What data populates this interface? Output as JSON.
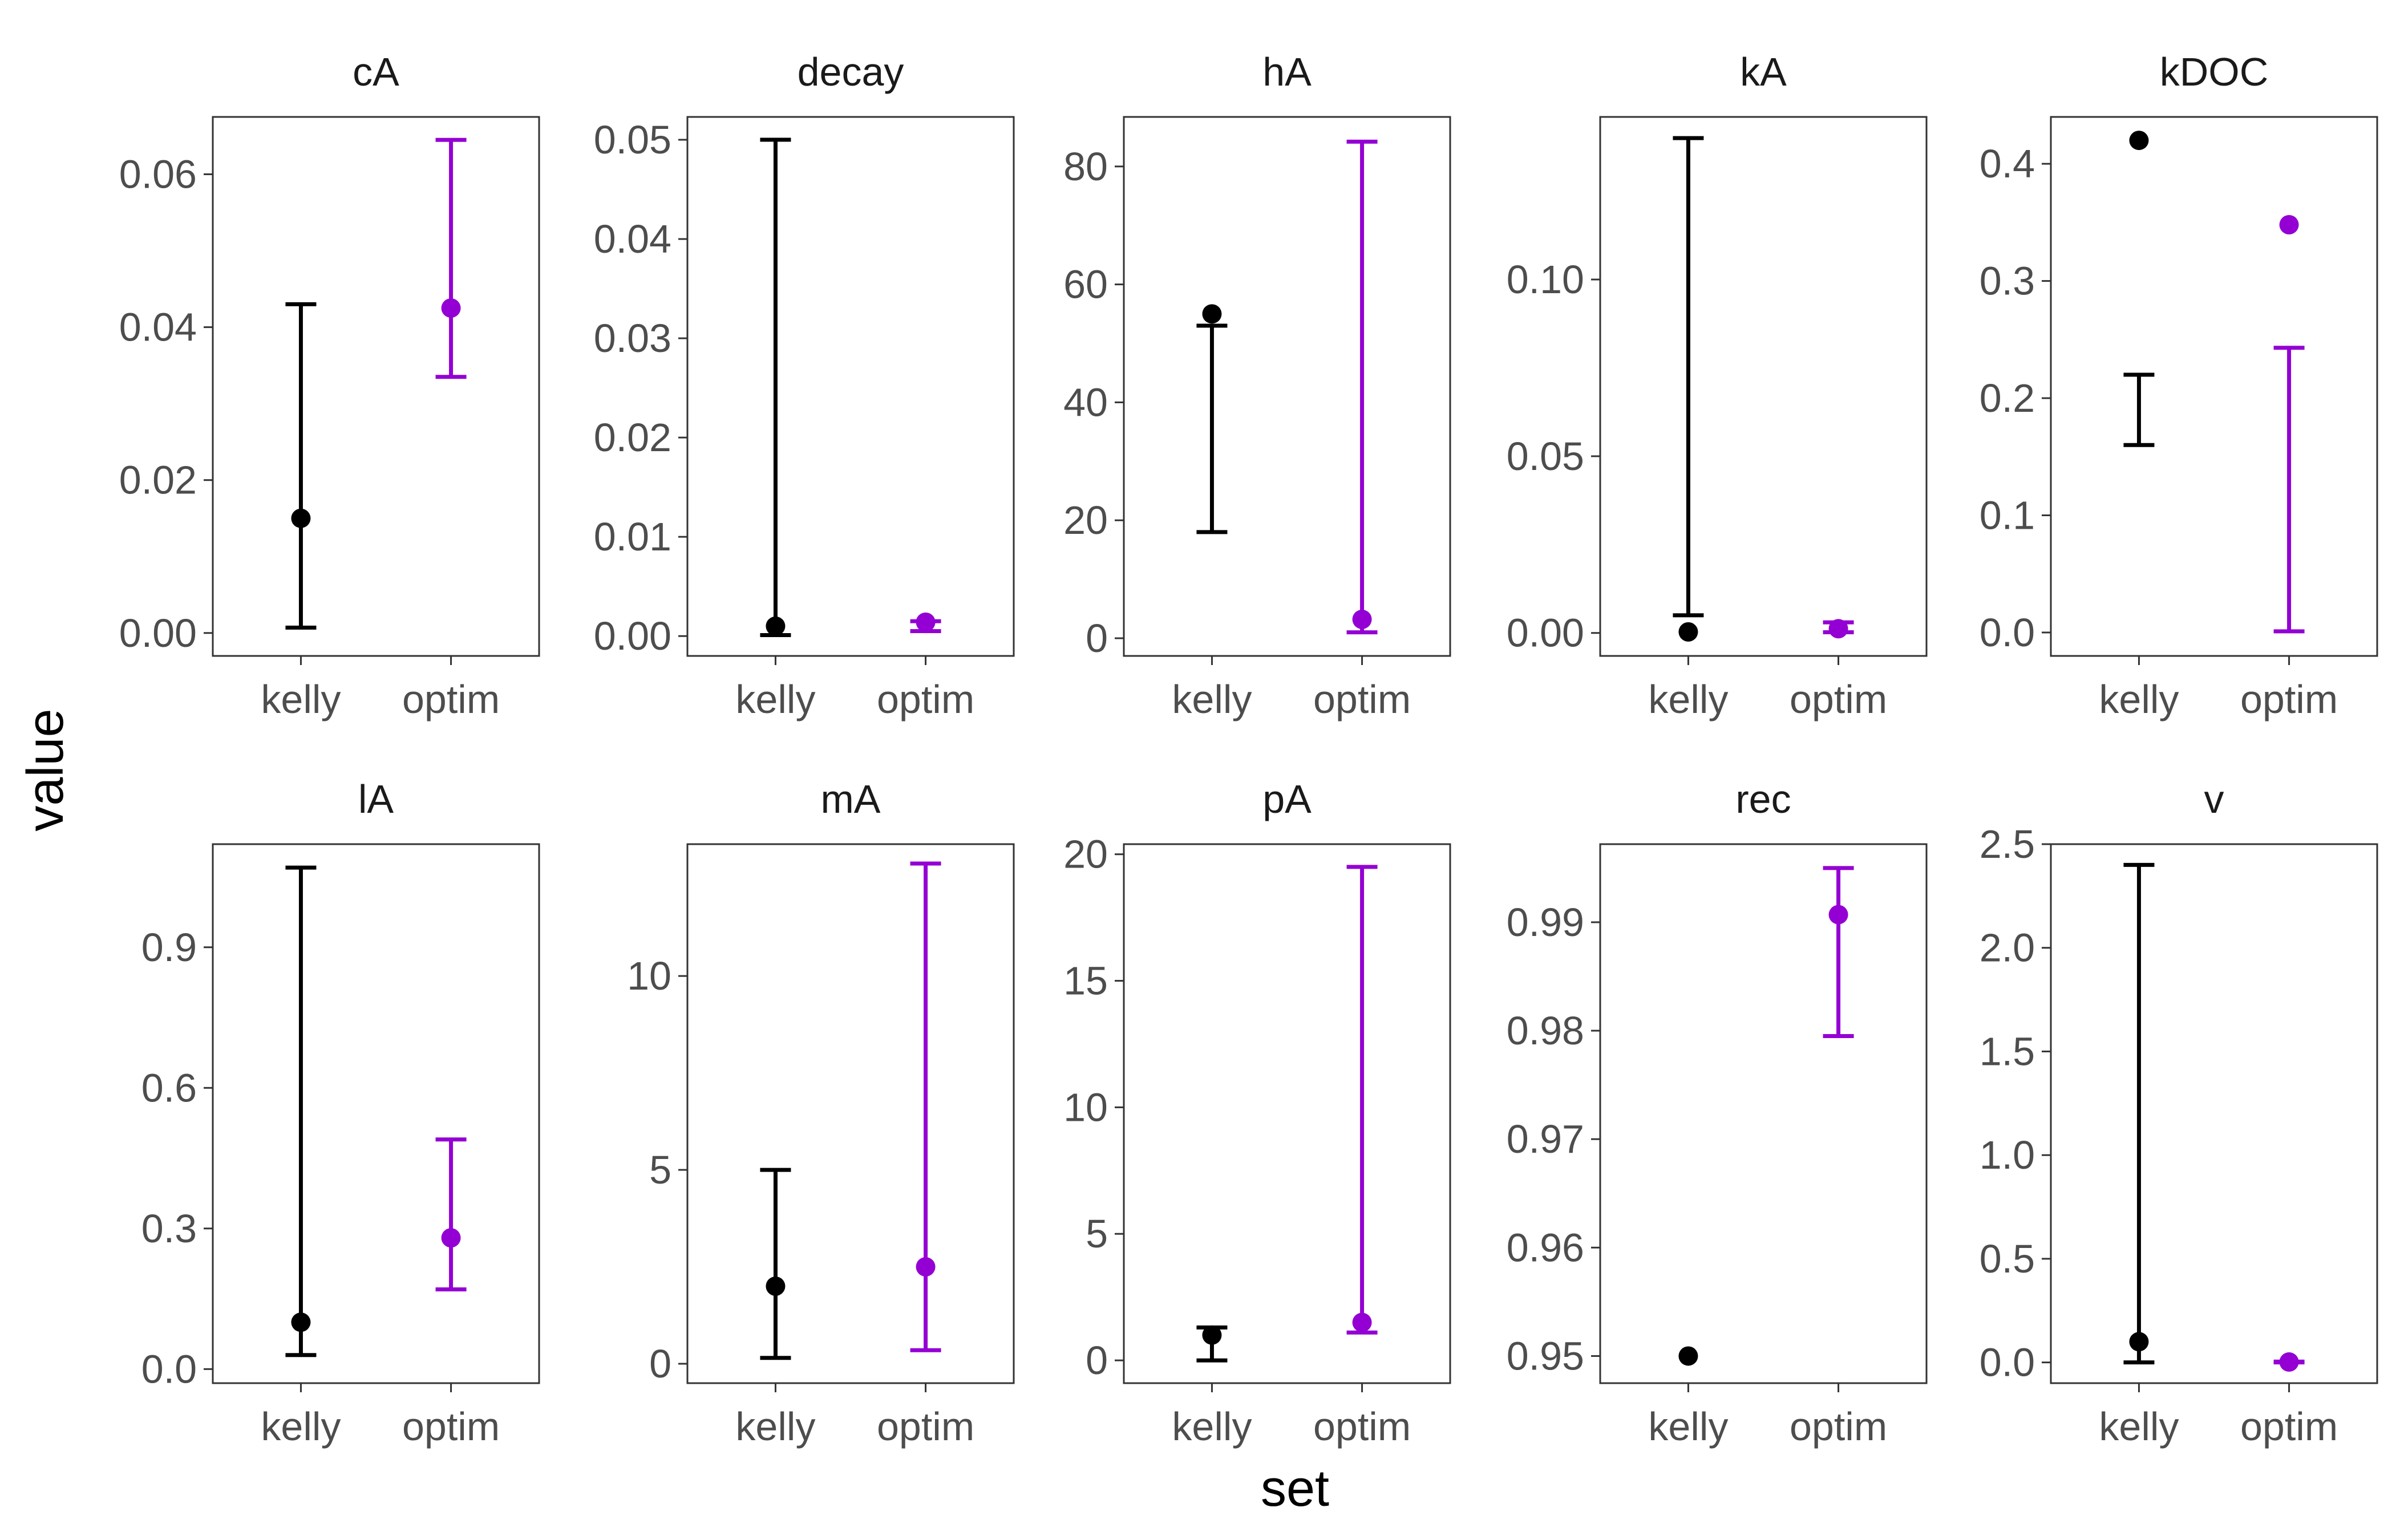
{
  "chart_data": {
    "type": "errorbar",
    "xlabel": "set",
    "ylabel": "value",
    "categories": [
      "kelly",
      "optim"
    ],
    "series_colors": {
      "kelly": "#000000",
      "optim": "#9400D3"
    },
    "grid": false,
    "legend": "none",
    "panels": [
      {
        "title": "cA",
        "ylim": [
          -0.003,
          0.0675
        ],
        "yticks": [
          0,
          0.02,
          0.04,
          0.06
        ],
        "ytick_labels": [
          "0.00",
          "0.02",
          "0.04",
          "0.06"
        ],
        "points": [
          {
            "set": "kelly",
            "value": 0.015,
            "lower": 0.0007,
            "upper": 0.043
          },
          {
            "set": "optim",
            "value": 0.0425,
            "lower": 0.0335,
            "upper": 0.0645
          }
        ]
      },
      {
        "title": "decay",
        "ylim": [
          -0.002,
          0.0523
        ],
        "yticks": [
          0,
          0.01,
          0.02,
          0.03,
          0.04,
          0.05
        ],
        "ytick_labels": [
          "0.00",
          "0.01",
          "0.02",
          "0.03",
          "0.04",
          "0.05"
        ],
        "points": [
          {
            "set": "kelly",
            "value": 0.001,
            "lower": 0.0001,
            "upper": 0.05
          },
          {
            "set": "optim",
            "value": 0.0014,
            "lower": 0.0005,
            "upper": 0.0015
          }
        ]
      },
      {
        "title": "hA",
        "ylim": [
          -3,
          88.4
        ],
        "yticks": [
          0,
          20,
          40,
          60,
          80
        ],
        "ytick_labels": [
          "0",
          "20",
          "40",
          "60",
          "80"
        ],
        "points": [
          {
            "set": "kelly",
            "value": 55,
            "lower": 18,
            "upper": 53
          },
          {
            "set": "optim",
            "value": 3.2,
            "lower": 1,
            "upper": 84.2
          }
        ]
      },
      {
        "title": "kA",
        "ylim": [
          -0.0065,
          0.146
        ],
        "yticks": [
          0,
          0.05,
          0.1
        ],
        "ytick_labels": [
          "0.00",
          "0.05",
          "0.10"
        ],
        "points": [
          {
            "set": "kelly",
            "value": 0.0003,
            "lower": 0.005,
            "upper": 0.14
          },
          {
            "set": "optim",
            "value": 0.0012,
            "lower": 0.0002,
            "upper": 0.003
          }
        ]
      },
      {
        "title": "kDOC",
        "ylim": [
          -0.02,
          0.44
        ],
        "yticks": [
          0,
          0.1,
          0.2,
          0.3,
          0.4
        ],
        "ytick_labels": [
          "0.0",
          "0.1",
          "0.2",
          "0.3",
          "0.4"
        ],
        "points": [
          {
            "set": "kelly",
            "value": 0.42,
            "lower": 0.16,
            "upper": 0.22
          },
          {
            "set": "optim",
            "value": 0.348,
            "lower": 0.001,
            "upper": 0.243
          }
        ]
      },
      {
        "title": "lA",
        "ylim": [
          -0.03,
          1.12
        ],
        "yticks": [
          0,
          0.3,
          0.6,
          0.9
        ],
        "ytick_labels": [
          "0.0",
          "0.3",
          "0.6",
          "0.9"
        ],
        "points": [
          {
            "set": "kelly",
            "value": 0.1,
            "lower": 0.03,
            "upper": 1.07
          },
          {
            "set": "optim",
            "value": 0.28,
            "lower": 0.17,
            "upper": 0.49
          }
        ]
      },
      {
        "title": "mA",
        "ylim": [
          -0.5,
          13.4
        ],
        "yticks": [
          0,
          5,
          10
        ],
        "ytick_labels": [
          "0",
          "5",
          "10"
        ],
        "points": [
          {
            "set": "kelly",
            "value": 2,
            "lower": 0.15,
            "upper": 5
          },
          {
            "set": "optim",
            "value": 2.5,
            "lower": 0.35,
            "upper": 12.9
          }
        ]
      },
      {
        "title": "pA",
        "ylim": [
          -0.9,
          20.4
        ],
        "yticks": [
          0,
          5,
          10,
          15,
          20
        ],
        "ytick_labels": [
          "0",
          "5",
          "10",
          "15",
          "20"
        ],
        "points": [
          {
            "set": "kelly",
            "value": 1,
            "lower": 0,
            "upper": 1.3
          },
          {
            "set": "optim",
            "value": 1.5,
            "lower": 1.1,
            "upper": 19.5
          }
        ]
      },
      {
        "title": "rec",
        "ylim": [
          0.9475,
          0.9972
        ],
        "yticks": [
          0.95,
          0.96,
          0.97,
          0.98,
          0.99
        ],
        "ytick_labels": [
          "0.95",
          "0.96",
          "0.97",
          "0.98",
          "0.99"
        ],
        "points": [
          {
            "set": "kelly",
            "value": 0.95,
            "lower": null,
            "upper": null
          },
          {
            "set": "optim",
            "value": 0.9907,
            "lower": 0.9795,
            "upper": 0.995
          }
        ]
      },
      {
        "title": "v",
        "ylim": [
          -0.1,
          2.5
        ],
        "yticks": [
          0,
          0.5,
          1,
          1.5,
          2,
          2.5
        ],
        "ytick_labels": [
          "0.0",
          "0.5",
          "1.0",
          "1.5",
          "2.0",
          "2.5"
        ],
        "points": [
          {
            "set": "kelly",
            "value": 0.1,
            "lower": 0,
            "upper": 2.4
          },
          {
            "set": "optim",
            "value": 0.002,
            "lower": 0,
            "upper": 0.004
          }
        ]
      }
    ]
  }
}
